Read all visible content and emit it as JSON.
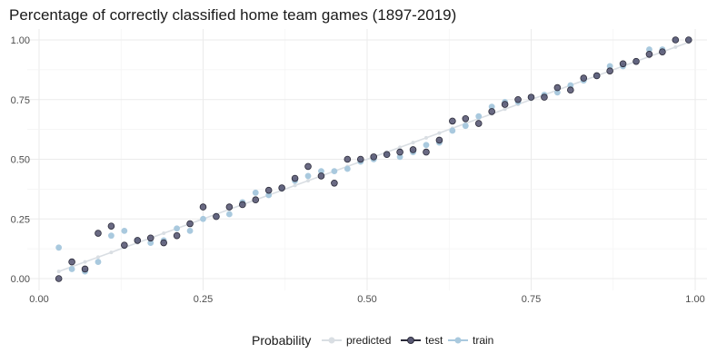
{
  "chart_data": {
    "type": "scatter",
    "title": "Percentage of correctly classified home team games (1897-2019)",
    "xlabel": "",
    "ylabel": "",
    "xlim": [
      0,
      1
    ],
    "ylim": [
      0,
      1
    ],
    "x_ticks": [
      0,
      0.25,
      0.5,
      0.75,
      1
    ],
    "x_tick_labels": [
      "0.00",
      "0.25",
      "0.50",
      "0.75",
      "1.00"
    ],
    "y_ticks": [
      0,
      0.25,
      0.5,
      0.75,
      1
    ],
    "y_tick_labels": [
      "0.00",
      "0.25",
      "0.50",
      "0.75",
      "1.00"
    ],
    "grid": true,
    "legend": {
      "title": "Probability",
      "position": "bottom",
      "entries": [
        "predicted",
        "test",
        "train"
      ]
    },
    "colors": {
      "predicted": "#d9dee3",
      "test": "#5a5a75",
      "test_outline": "#2b2b3a",
      "train": "#a9c9de",
      "grid": "#ebebeb",
      "text": "#4d4d4d"
    },
    "series": [
      {
        "name": "predicted",
        "kind": "line",
        "x": [
          0.03,
          0.05,
          0.07,
          0.09,
          0.11,
          0.13,
          0.15,
          0.17,
          0.19,
          0.21,
          0.23,
          0.25,
          0.27,
          0.29,
          0.31,
          0.33,
          0.35,
          0.37,
          0.39,
          0.41,
          0.43,
          0.45,
          0.47,
          0.49,
          0.51,
          0.53,
          0.55,
          0.57,
          0.59,
          0.61,
          0.63,
          0.65,
          0.67,
          0.69,
          0.71,
          0.73,
          0.75,
          0.77,
          0.79,
          0.81,
          0.83,
          0.85,
          0.87,
          0.89,
          0.91,
          0.93,
          0.95,
          0.97,
          0.99
        ],
        "y": [
          0.03,
          0.05,
          0.07,
          0.09,
          0.11,
          0.13,
          0.15,
          0.17,
          0.19,
          0.21,
          0.23,
          0.25,
          0.27,
          0.29,
          0.31,
          0.33,
          0.35,
          0.37,
          0.39,
          0.41,
          0.43,
          0.45,
          0.47,
          0.49,
          0.51,
          0.53,
          0.55,
          0.57,
          0.59,
          0.61,
          0.63,
          0.65,
          0.67,
          0.69,
          0.71,
          0.73,
          0.75,
          0.77,
          0.79,
          0.81,
          0.83,
          0.85,
          0.87,
          0.89,
          0.91,
          0.93,
          0.95,
          0.97,
          0.99
        ]
      },
      {
        "name": "train",
        "kind": "points",
        "x": [
          0.03,
          0.05,
          0.07,
          0.09,
          0.11,
          0.13,
          0.15,
          0.17,
          0.19,
          0.21,
          0.23,
          0.25,
          0.27,
          0.29,
          0.31,
          0.33,
          0.35,
          0.37,
          0.39,
          0.41,
          0.43,
          0.45,
          0.47,
          0.49,
          0.51,
          0.53,
          0.55,
          0.57,
          0.59,
          0.61,
          0.63,
          0.65,
          0.67,
          0.69,
          0.71,
          0.73,
          0.75,
          0.77,
          0.79,
          0.81,
          0.83,
          0.85,
          0.87,
          0.89,
          0.91,
          0.93,
          0.95,
          0.97,
          0.99
        ],
        "y": [
          0.13,
          0.04,
          0.03,
          0.07,
          0.18,
          0.2,
          0.16,
          0.15,
          0.16,
          0.21,
          0.2,
          0.25,
          0.26,
          0.27,
          0.32,
          0.36,
          0.35,
          0.38,
          0.41,
          0.43,
          0.45,
          0.45,
          0.46,
          0.49,
          0.5,
          0.52,
          0.51,
          0.53,
          0.56,
          0.57,
          0.62,
          0.64,
          0.68,
          0.72,
          0.74,
          0.74,
          0.76,
          0.77,
          0.78,
          0.81,
          0.83,
          0.85,
          0.89,
          0.89,
          0.91,
          0.96,
          0.96,
          1.0,
          1.0
        ]
      },
      {
        "name": "test",
        "kind": "points",
        "x": [
          0.03,
          0.05,
          0.07,
          0.09,
          0.11,
          0.13,
          0.15,
          0.17,
          0.19,
          0.21,
          0.23,
          0.25,
          0.27,
          0.29,
          0.31,
          0.33,
          0.35,
          0.37,
          0.39,
          0.41,
          0.43,
          0.45,
          0.47,
          0.49,
          0.51,
          0.53,
          0.55,
          0.57,
          0.59,
          0.61,
          0.63,
          0.65,
          0.67,
          0.69,
          0.71,
          0.73,
          0.75,
          0.77,
          0.79,
          0.81,
          0.83,
          0.85,
          0.87,
          0.89,
          0.91,
          0.93,
          0.95,
          0.97,
          0.99
        ],
        "y": [
          0.0,
          0.07,
          0.04,
          0.19,
          0.22,
          0.14,
          0.16,
          0.17,
          0.15,
          0.18,
          0.23,
          0.3,
          0.26,
          0.3,
          0.31,
          0.33,
          0.37,
          0.38,
          0.42,
          0.47,
          0.43,
          0.4,
          0.5,
          0.5,
          0.51,
          0.52,
          0.53,
          0.54,
          0.53,
          0.58,
          0.66,
          0.67,
          0.65,
          0.7,
          0.73,
          0.75,
          0.76,
          0.76,
          0.8,
          0.79,
          0.84,
          0.85,
          0.87,
          0.9,
          0.91,
          0.94,
          0.95,
          1.0,
          1.0
        ]
      }
    ]
  }
}
